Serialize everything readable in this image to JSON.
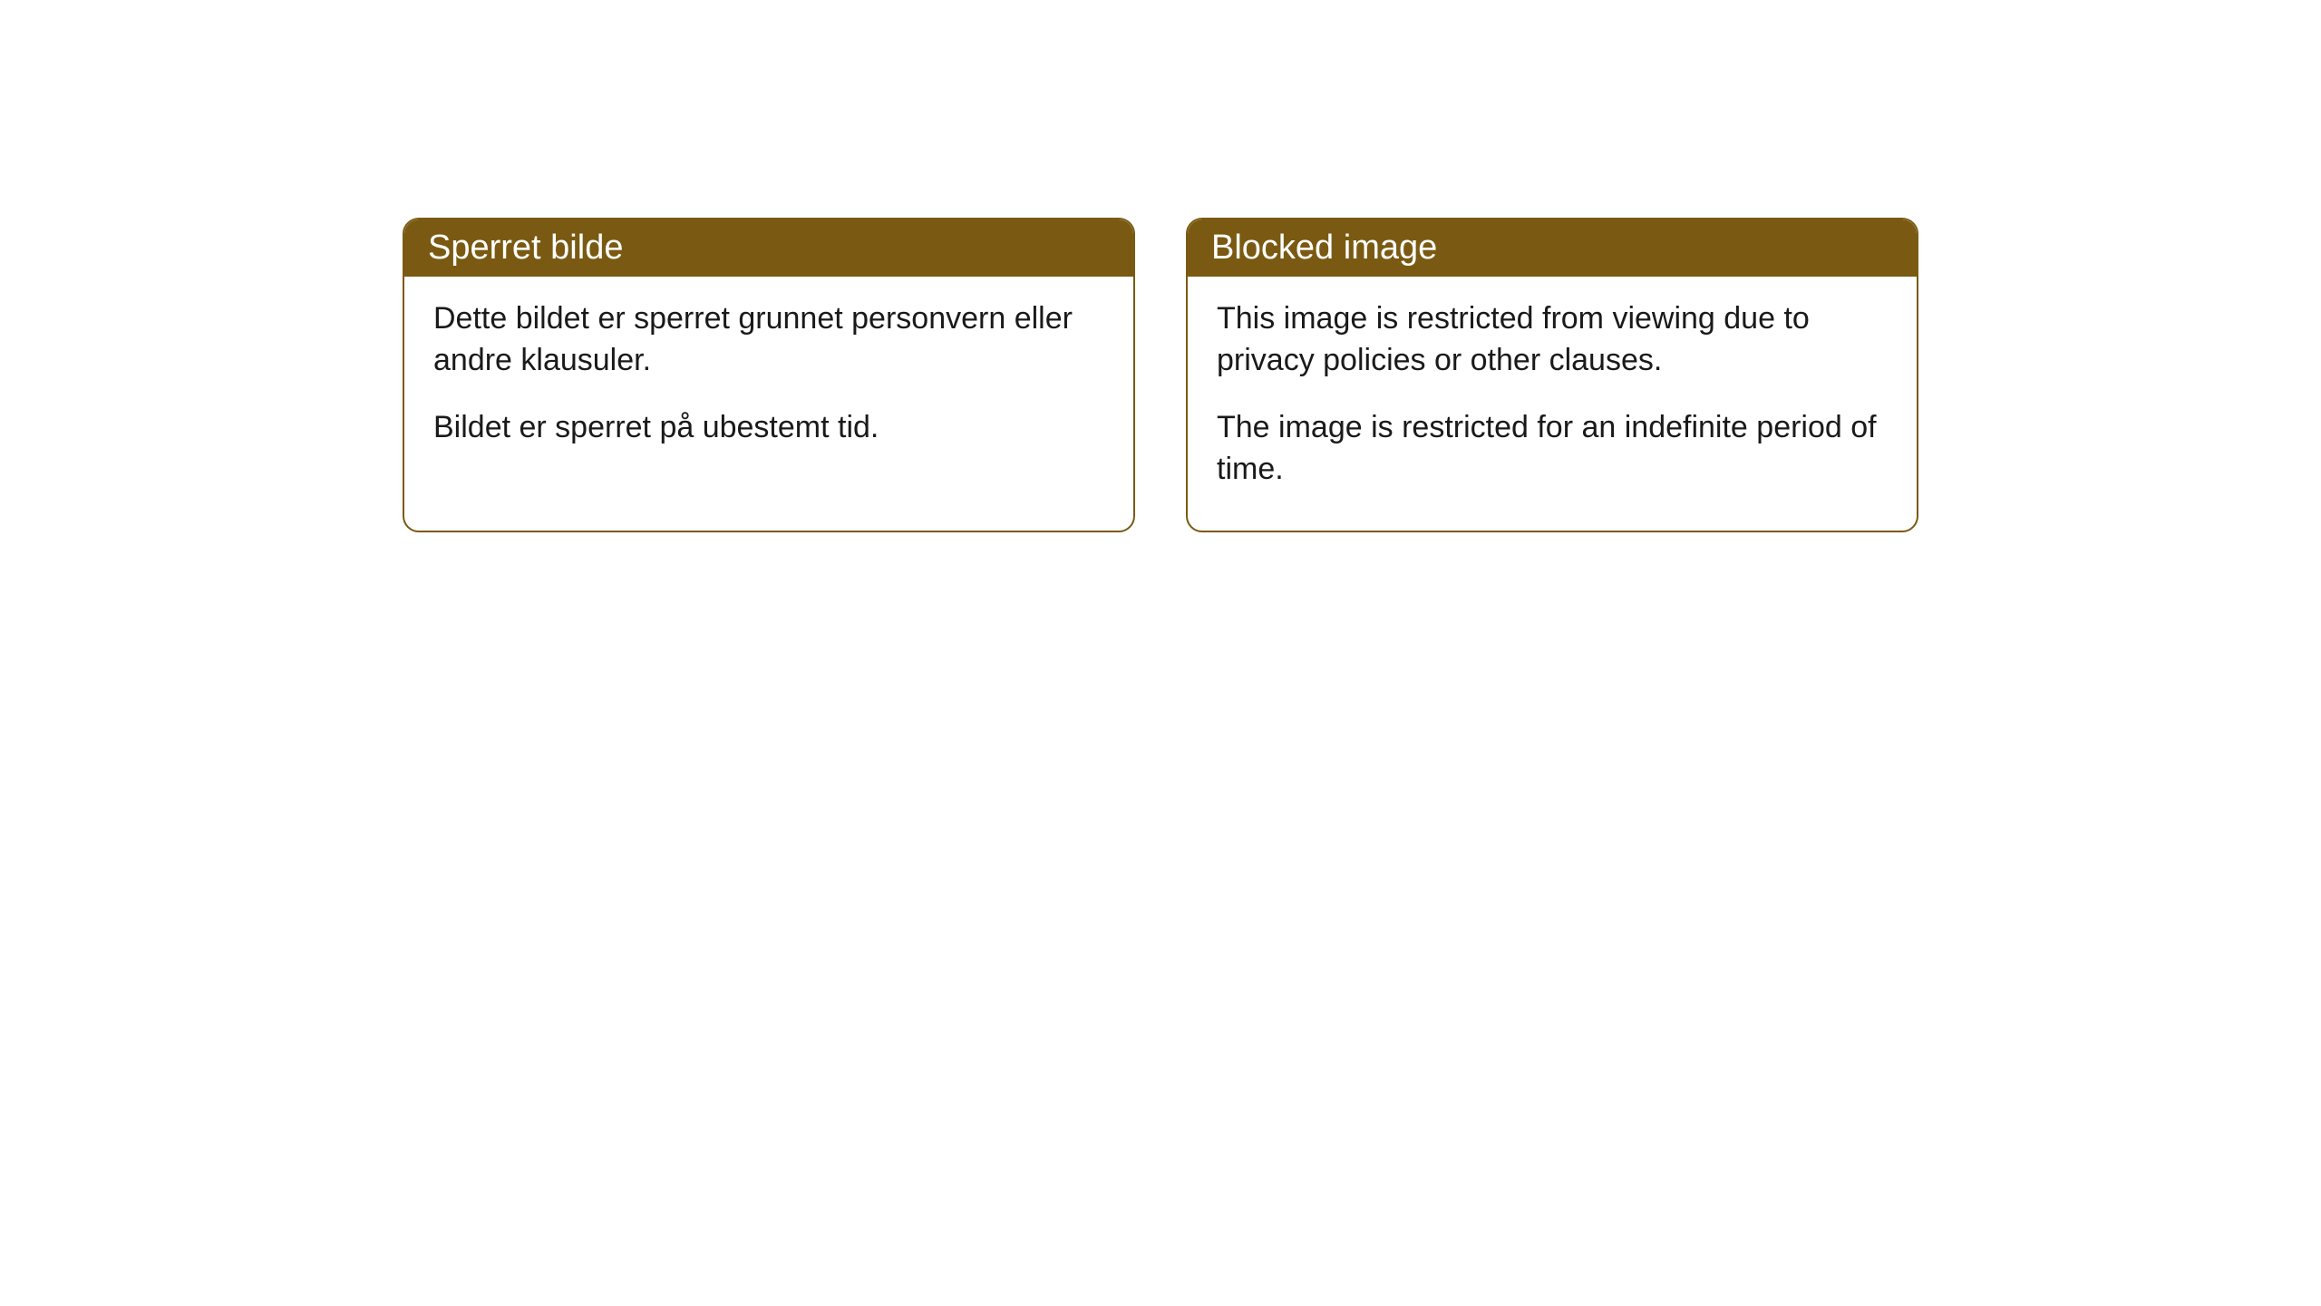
{
  "cards": [
    {
      "title": "Sperret bilde",
      "paragraph1": "Dette bildet er sperret grunnet personvern eller andre klausuler.",
      "paragraph2": "Bildet er sperret på ubestemt tid."
    },
    {
      "title": "Blocked image",
      "paragraph1": "This image is restricted from viewing due to privacy policies or other clauses.",
      "paragraph2": "The image is restricted for an indefinite period of time."
    }
  ],
  "styling": {
    "header_background_color": "#7a5a12",
    "header_text_color": "#ffffff",
    "border_color": "#7a5a12",
    "body_background_color": "#ffffff",
    "body_text_color": "#1a1a1a",
    "border_radius": 18,
    "title_fontsize": 38,
    "body_fontsize": 34
  }
}
